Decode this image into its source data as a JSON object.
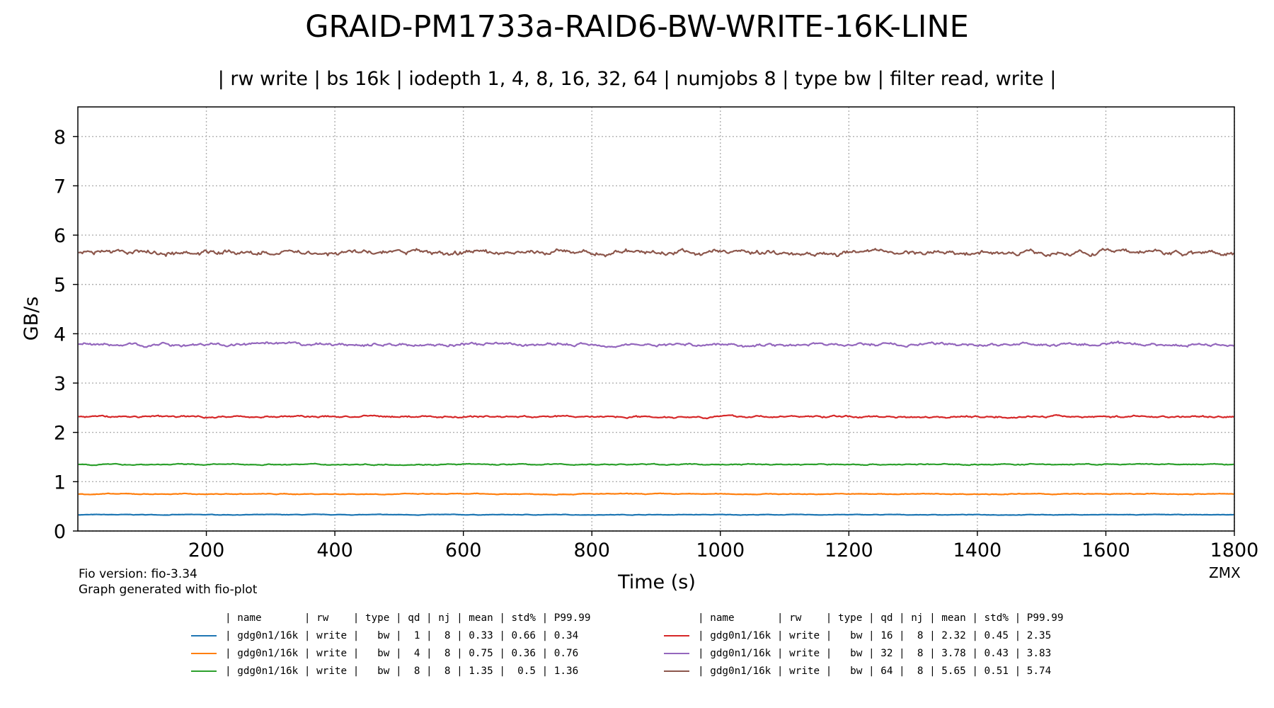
{
  "chart_data": {
    "type": "line",
    "title": "GRAID-PM1733a-RAID6-BW-WRITE-16K-LINE",
    "subtitle": "| rw write | bs 16k | iodepth 1, 4, 8, 16, 32, 64 | numjobs 8 | type bw | filter read, write |",
    "xlabel": "Time (s)",
    "ylabel": "GB/s",
    "xlim": [
      0,
      1800
    ],
    "ylim": [
      0,
      8.6
    ],
    "xticks": [
      200,
      400,
      600,
      800,
      1000,
      1200,
      1400,
      1600,
      1800
    ],
    "yticks": [
      0,
      1,
      2,
      3,
      4,
      5,
      6,
      7,
      8
    ],
    "grid": true,
    "legend_position": "bottom",
    "series": [
      {
        "name": "| gdg0n1/16k | write |   bw |  1 |  8 | 0.33 | 0.66 | 0.34",
        "color": "#1f77b4",
        "mean": 0.33,
        "amp": 0.004
      },
      {
        "name": "| gdg0n1/16k | write |   bw |  4 |  8 | 0.75 | 0.36 | 0.76",
        "color": "#ff7f0e",
        "mean": 0.75,
        "amp": 0.006
      },
      {
        "name": "| gdg0n1/16k | write |   bw |  8 |  8 | 1.35 |  0.5 | 1.36",
        "color": "#2ca02c",
        "mean": 1.35,
        "amp": 0.008
      },
      {
        "name": "| gdg0n1/16k | write |   bw | 16 |  8 | 2.32 | 0.45 | 2.35",
        "color": "#d62728",
        "mean": 2.32,
        "amp": 0.014
      },
      {
        "name": "| gdg0n1/16k | write |   bw | 32 |  8 | 3.78 | 0.43 | 3.83",
        "color": "#9467bd",
        "mean": 3.78,
        "amp": 0.022
      },
      {
        "name": "| gdg0n1/16k | write |   bw | 64 |  8 | 5.65 | 0.51 | 5.74",
        "color": "#8c564b",
        "mean": 5.65,
        "amp": 0.035
      }
    ]
  },
  "legend": {
    "header": "| name       | rw    | type | qd | nj | mean | std% | P99.99"
  },
  "footer": {
    "fio_version": "Fio version: fio-3.34",
    "generator": "Graph generated with fio-plot",
    "signature": "ZMX"
  }
}
